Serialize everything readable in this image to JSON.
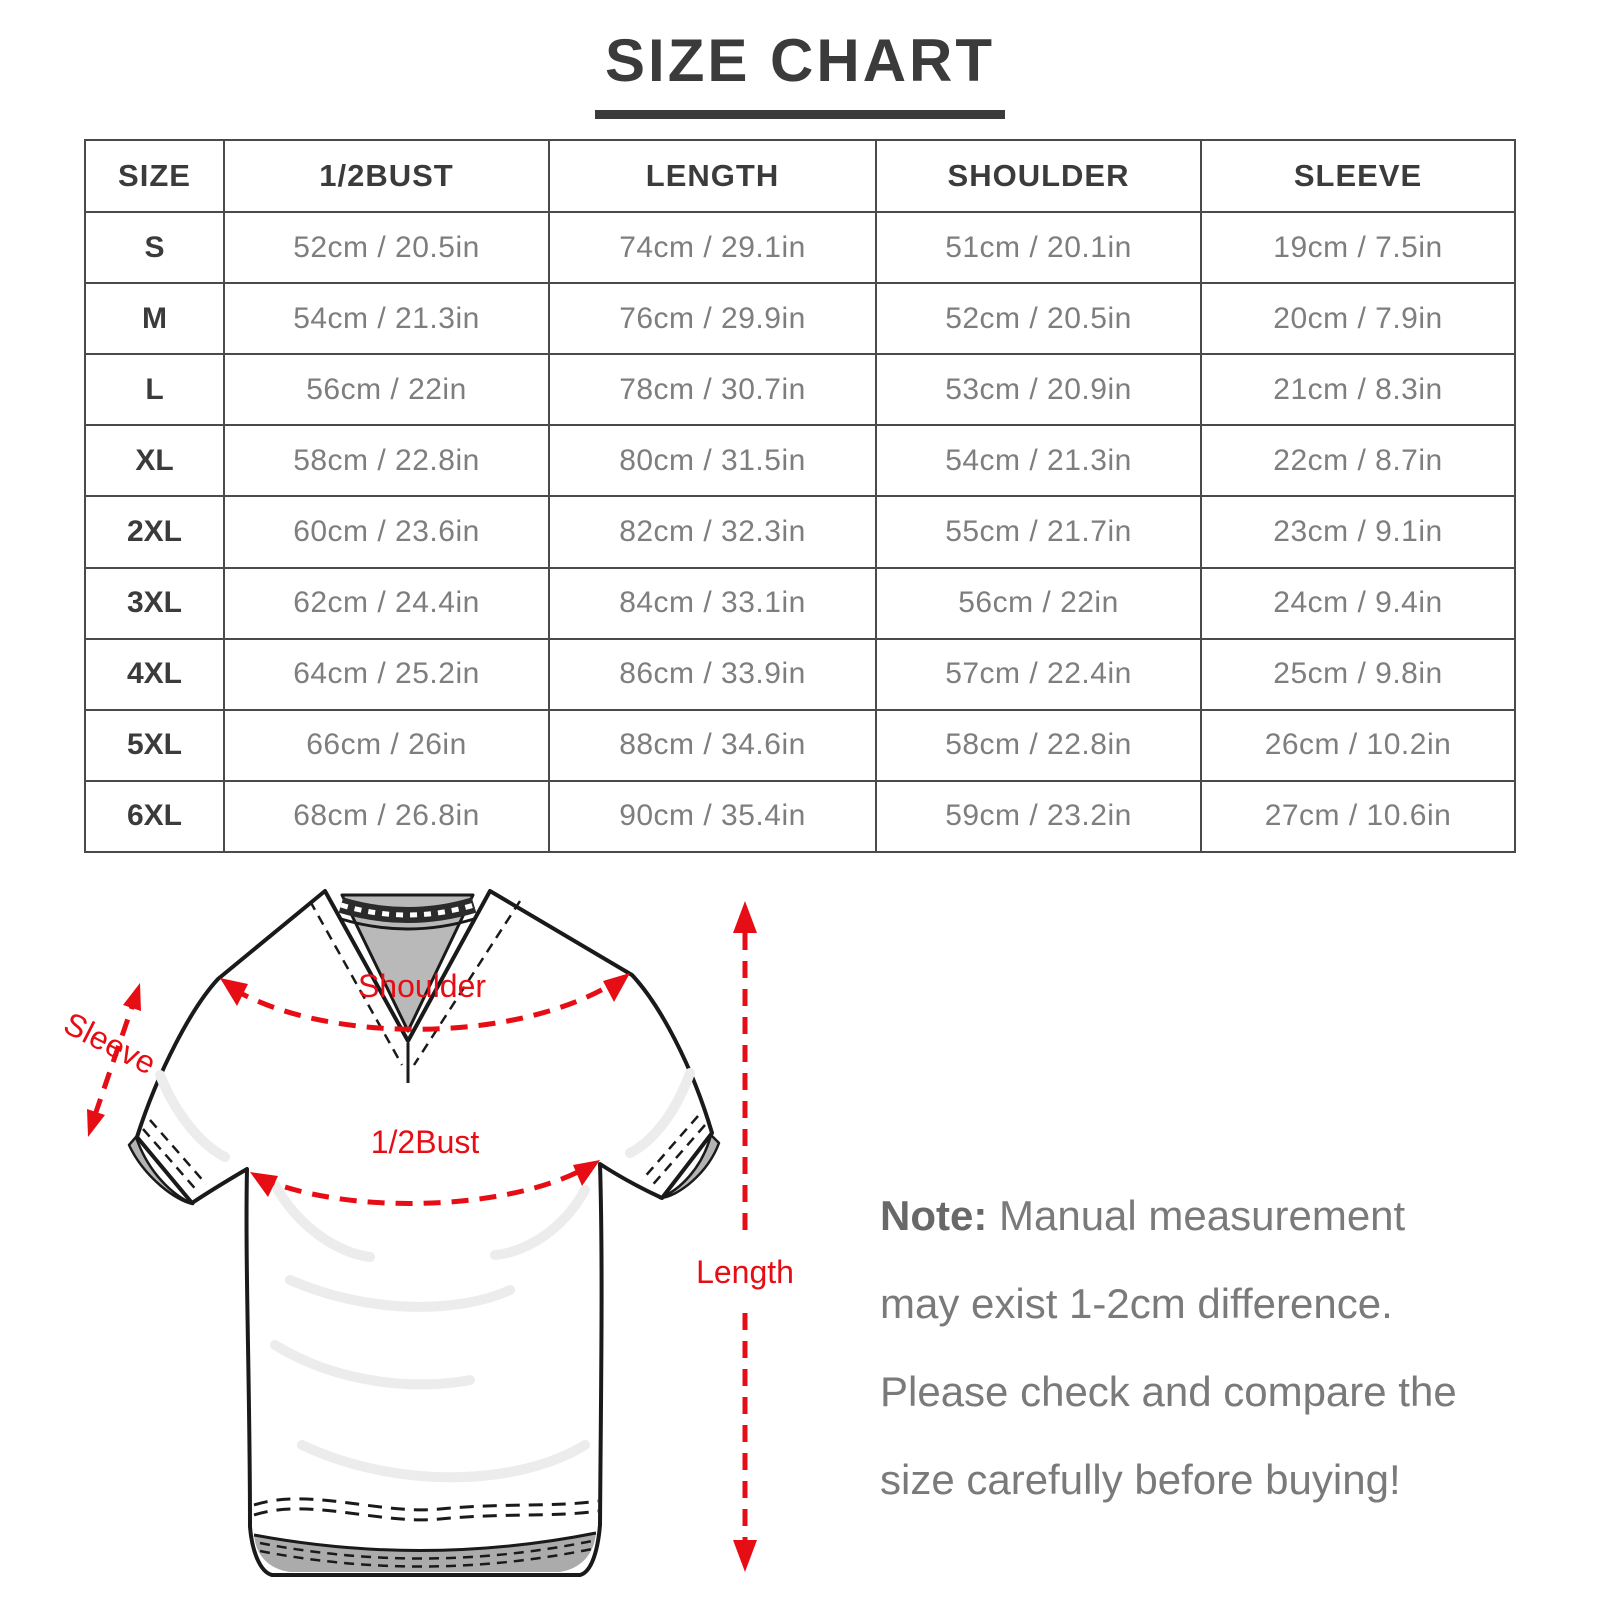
{
  "title": "SIZE CHART",
  "table": {
    "headers": [
      "SIZE",
      "1/2BUST",
      "LENGTH",
      "SHOULDER",
      "SLEEVE"
    ],
    "rows": [
      [
        "S",
        "52cm / 20.5in",
        "74cm / 29.1in",
        "51cm / 20.1in",
        "19cm / 7.5in"
      ],
      [
        "M",
        "54cm / 21.3in",
        "76cm / 29.9in",
        "52cm / 20.5in",
        "20cm / 7.9in"
      ],
      [
        "L",
        "56cm / 22in",
        "78cm / 30.7in",
        "53cm / 20.9in",
        "21cm / 8.3in"
      ],
      [
        "XL",
        "58cm / 22.8in",
        "80cm / 31.5in",
        "54cm / 21.3in",
        "22cm / 8.7in"
      ],
      [
        "2XL",
        "60cm / 23.6in",
        "82cm / 32.3in",
        "55cm / 21.7in",
        "23cm / 9.1in"
      ],
      [
        "3XL",
        "62cm / 24.4in",
        "84cm / 33.1in",
        "56cm / 22in",
        "24cm / 9.4in"
      ],
      [
        "4XL",
        "64cm / 25.2in",
        "86cm / 33.9in",
        "57cm / 22.4in",
        "25cm / 9.8in"
      ],
      [
        "5XL",
        "66cm / 26in",
        "88cm / 34.6in",
        "58cm / 22.8in",
        "26cm / 10.2in"
      ],
      [
        "6XL",
        "68cm / 26.8in",
        "90cm / 35.4in",
        "59cm / 23.2in",
        "27cm / 10.6in"
      ]
    ]
  },
  "diagram": {
    "arrow_color": "#e60d15",
    "labels": {
      "shoulder": "Shoulder",
      "sleeve": "Sleeve",
      "half_bust": "1/2Bust",
      "length": "Length"
    }
  },
  "note": {
    "label": "Note:",
    "text": "Manual measurement may exist 1-2cm difference. Please check and compare the size carefully before buying!"
  }
}
